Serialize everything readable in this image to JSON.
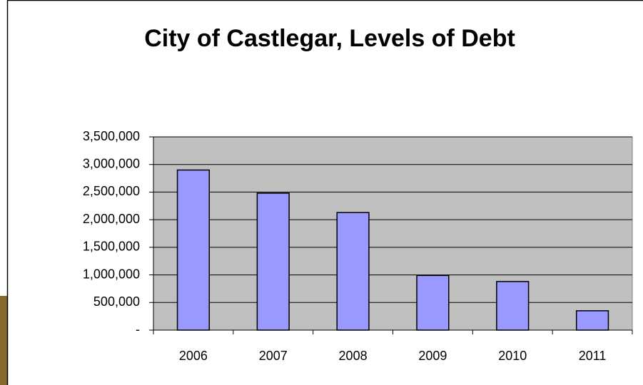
{
  "chart_data": {
    "type": "bar",
    "title": "City of Castlegar, Levels of Debt",
    "categories": [
      "2006",
      "2007",
      "2008",
      "2009",
      "2010",
      "2011"
    ],
    "values": [
      2900000,
      2480000,
      2130000,
      990000,
      880000,
      350000
    ],
    "color": "#9999ff",
    "ylim": [
      0,
      3500000
    ],
    "yticks": [
      {
        "value": 0,
        "label": "-"
      },
      {
        "value": 500000,
        "label": "500,000"
      },
      {
        "value": 1000000,
        "label": "1,000,000"
      },
      {
        "value": 1500000,
        "label": "1,500,000"
      },
      {
        "value": 2000000,
        "label": "2,000,000"
      },
      {
        "value": 2500000,
        "label": "2,500,000"
      },
      {
        "value": 3000000,
        "label": "3,000,000"
      },
      {
        "value": 3500000,
        "label": "3,500,000"
      }
    ],
    "grid": true
  }
}
